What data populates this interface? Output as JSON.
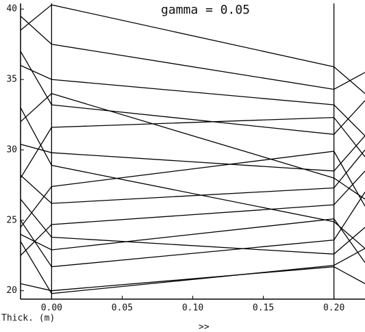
{
  "chart_data": {
    "type": "line",
    "title": "gamma = 0.05",
    "x_label": "Thick. (m)",
    "footer": ">>",
    "x": [
      -0.022,
      0,
      0.2,
      0.222
    ],
    "series": [
      {
        "color": "#000",
        "values": [
          38.5,
          40.3,
          35.9,
          34.0
        ]
      },
      {
        "color": "#000",
        "values": [
          39.5,
          37.5,
          34.3,
          35.5
        ]
      },
      {
        "color": "#000",
        "values": [
          36.0,
          35.0,
          33.2,
          31.0
        ]
      },
      {
        "color": "#000",
        "values": [
          32.0,
          34.0,
          28.0,
          26.5
        ]
      },
      {
        "color": "#000",
        "values": [
          37.0,
          33.2,
          31.1,
          33.5
        ]
      },
      {
        "color": "#000",
        "values": [
          28.0,
          31.6,
          32.3,
          29.5
        ]
      },
      {
        "color": "#000",
        "values": [
          30.4,
          29.8,
          28.5,
          31.0
        ]
      },
      {
        "color": "#000",
        "values": [
          33.0,
          28.9,
          24.9,
          23.0
        ]
      },
      {
        "color": "#000",
        "values": [
          24.5,
          27.4,
          29.9,
          26.0
        ]
      },
      {
        "color": "#000",
        "values": [
          28.2,
          26.2,
          27.3,
          30.0
        ]
      },
      {
        "color": "#000",
        "values": [
          22.5,
          24.7,
          26.1,
          28.5
        ]
      },
      {
        "color": "#000",
        "values": [
          26.5,
          23.8,
          22.6,
          24.5
        ]
      },
      {
        "color": "#000",
        "values": [
          24.0,
          22.9,
          25.1,
          22.0
        ]
      },
      {
        "color": "#000",
        "values": [
          25.0,
          21.7,
          23.6,
          27.0
        ]
      },
      {
        "color": "#000",
        "values": [
          20.5,
          20.0,
          21.7,
          20.5
        ]
      },
      {
        "color": "#000",
        "values": [
          23.5,
          19.8,
          21.8,
          23.0
        ]
      }
    ],
    "vlines": [
      0,
      0.2
    ],
    "xlim": [
      -0.022,
      0.222
    ],
    "ylim": [
      19.4,
      40.4
    ],
    "xticks": [
      {
        "value": 0,
        "label": "0.00"
      },
      {
        "value": 0.05,
        "label": "0.05"
      },
      {
        "value": 0.1,
        "label": "0.10"
      },
      {
        "value": 0.15,
        "label": "0.15"
      },
      {
        "value": 0.2,
        "label": "0.20"
      }
    ],
    "yticks": [
      20,
      25,
      30,
      35,
      40
    ]
  }
}
